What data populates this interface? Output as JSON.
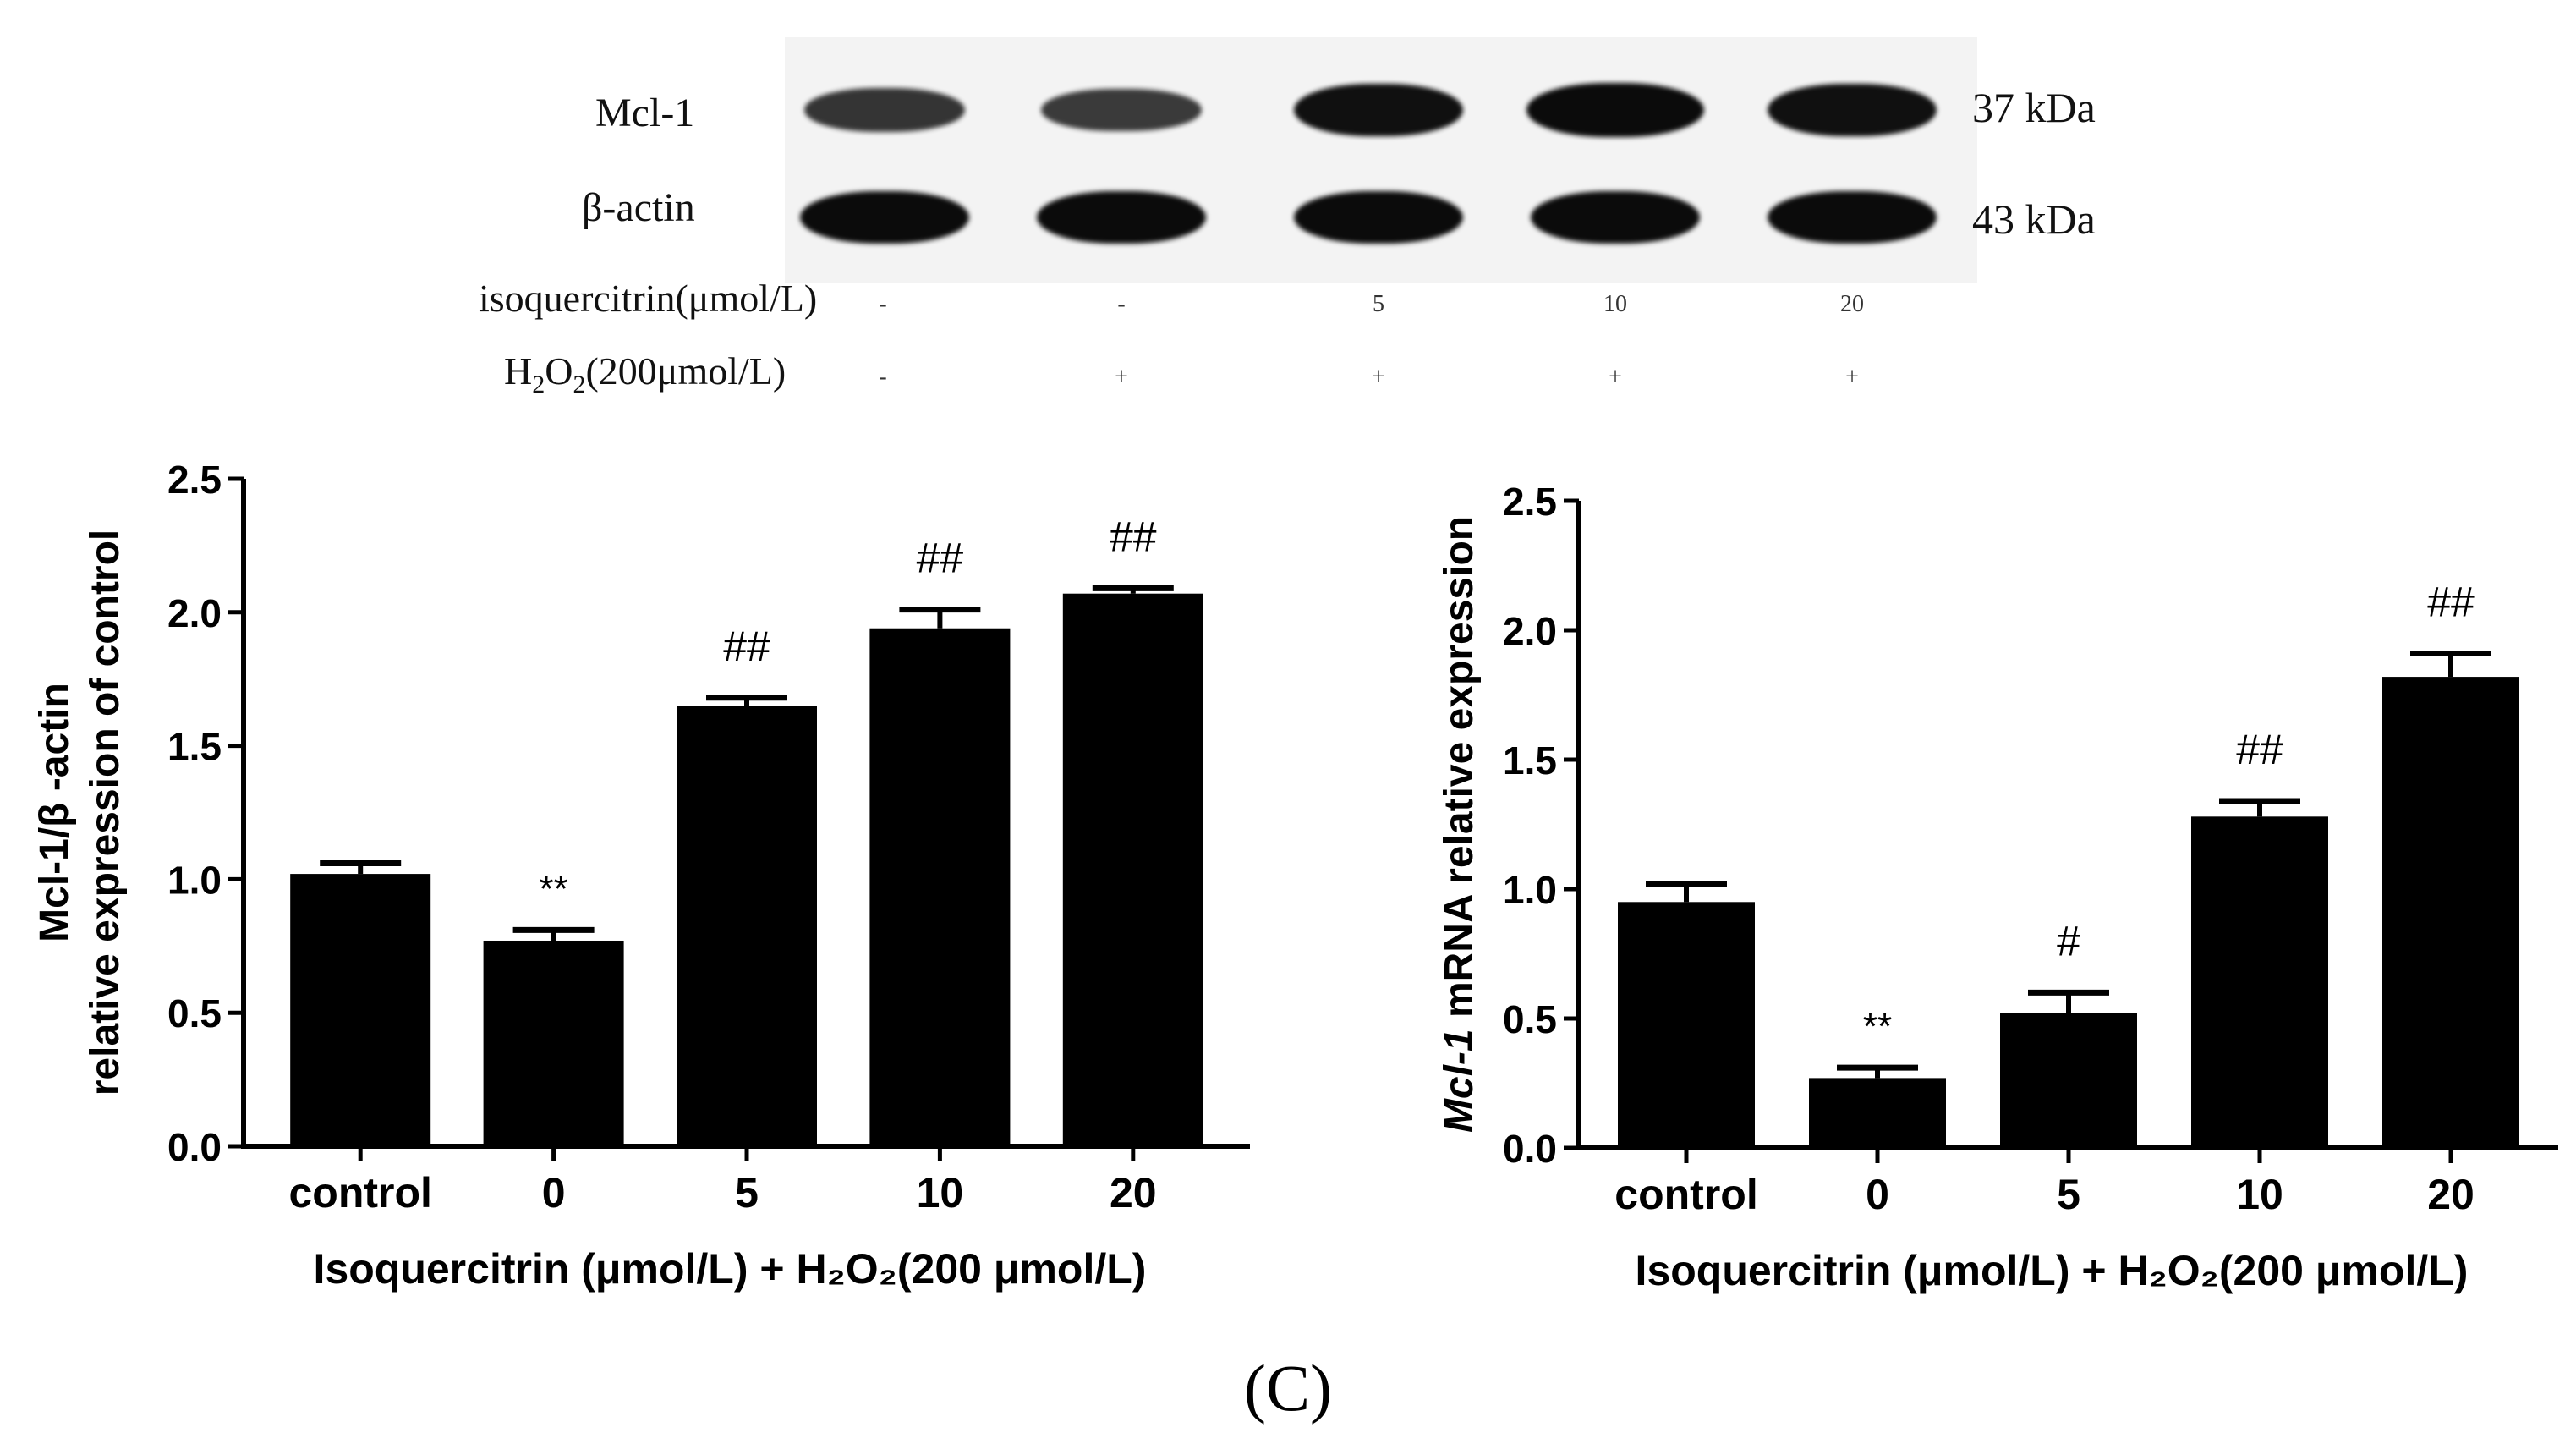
{
  "blot": {
    "rows": [
      {
        "label": "Mcl-1",
        "kda": "37 kDa"
      },
      {
        "label": "β-actin",
        "kda": "43 kDa"
      }
    ],
    "isoquercitrin_label": "isoquercitrin(μmol/L)",
    "h2o2_label_main": "H",
    "h2o2_label_sub1": "2",
    "h2o2_label_mid": "O",
    "h2o2_label_sub2": "2",
    "h2o2_label_end": "(200μmol/L)",
    "isoquercitrin_values": [
      "-",
      "-",
      "5",
      "10",
      "20"
    ],
    "h2o2_values": [
      "-",
      "+",
      "+",
      "+",
      "+"
    ],
    "mcl1_intensity": [
      0.6,
      0.55,
      0.95,
      1.0,
      0.95
    ],
    "actin_intensity": [
      1.0,
      1.0,
      1.0,
      1.0,
      1.0
    ]
  },
  "chart_data": [
    {
      "type": "bar",
      "categories": [
        "control",
        "0",
        "5",
        "10",
        "20"
      ],
      "values": [
        1.02,
        0.77,
        1.65,
        1.94,
        2.07
      ],
      "errors": [
        0.04,
        0.04,
        0.03,
        0.07,
        0.02
      ],
      "annotations": [
        "",
        "**",
        "##",
        "##",
        "##"
      ],
      "ylim": [
        0,
        2.5
      ],
      "yticks": [
        "0.0",
        "0.5",
        "1.0",
        "1.5",
        "2.0",
        "2.5"
      ],
      "ylabel_line1": "Mcl-1/β -actin",
      "ylabel_line2": "relative expression of control",
      "xlabel": "Isoquercitrin  (μmol/L) + H₂O₂(200 μmol/L)",
      "bar_color": "#000000"
    },
    {
      "type": "bar",
      "categories": [
        "control",
        "0",
        "5",
        "10",
        "20"
      ],
      "values": [
        0.95,
        0.27,
        0.52,
        1.28,
        1.82
      ],
      "errors": [
        0.07,
        0.04,
        0.08,
        0.06,
        0.09
      ],
      "annotations": [
        "",
        "**",
        "#",
        "##",
        "##"
      ],
      "ylim": [
        0,
        2.5
      ],
      "yticks": [
        "0.0",
        "0.5",
        "1.0",
        "1.5",
        "2.0",
        "2.5"
      ],
      "ylabel_italic": "Mcl-1",
      "ylabel_rest": " mRNA relative  expression",
      "xlabel": "Isoquercitrin  (μmol/L) + H₂O₂(200 μmol/L)",
      "bar_color": "#000000"
    }
  ],
  "panel_label": "(C)"
}
